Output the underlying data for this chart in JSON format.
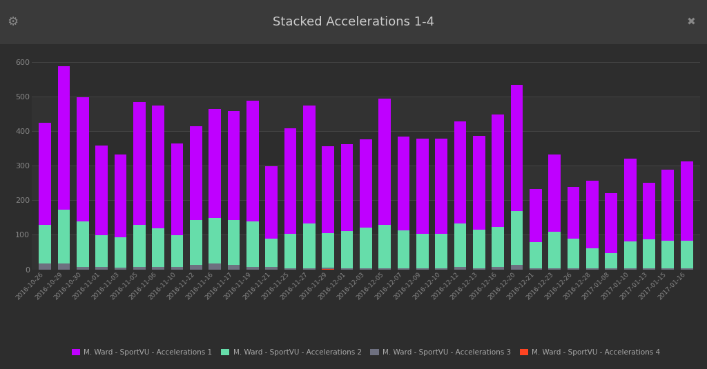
{
  "title": "Stacked Accelerations 1-4",
  "background_color": "#2d2d2d",
  "plot_bg_color": "#2d2d2d",
  "title_bar_color": "#3a3a3a",
  "title_color": "#cccccc",
  "tick_color": "#888888",
  "grid_color": "#444444",
  "alt_band_color": "#383838",
  "dates": [
    "2016-10-26",
    "2016-10-29",
    "2016-10-30",
    "2016-11-01",
    "2016-11-03",
    "2016-11-05",
    "2016-11-06",
    "2016-11-10",
    "2016-11-12",
    "2016-11-16",
    "2016-11-17",
    "2016-11-19",
    "2016-11-21",
    "2016-11-25",
    "2016-11-27",
    "2016-11-29",
    "2016-12-01",
    "2016-12-03",
    "2016-12-05",
    "2016-12-07",
    "2016-12-09",
    "2016-12-10",
    "2016-12-12",
    "2016-12-13",
    "2016-12-16",
    "2016-12-20",
    "2016-12-21",
    "2016-12-23",
    "2016-12-26",
    "2016-12-28",
    "2017-01-08",
    "2017-01-10",
    "2017-01-13",
    "2017-01-15",
    "2017-01-16"
  ],
  "acc1": [
    295,
    415,
    360,
    260,
    240,
    355,
    355,
    265,
    270,
    315,
    315,
    350,
    210,
    305,
    340,
    250,
    250,
    255,
    365,
    270,
    275,
    275,
    295,
    270,
    325,
    365,
    155,
    225,
    150,
    195,
    175,
    240,
    165,
    205,
    230
  ],
  "acc2": [
    110,
    155,
    130,
    90,
    88,
    120,
    110,
    90,
    130,
    130,
    130,
    130,
    80,
    100,
    130,
    100,
    108,
    118,
    125,
    110,
    100,
    100,
    125,
    112,
    115,
    155,
    75,
    105,
    85,
    58,
    43,
    78,
    83,
    80,
    80
  ],
  "acc3": [
    18,
    18,
    8,
    8,
    5,
    8,
    8,
    8,
    13,
    18,
    13,
    8,
    8,
    3,
    3,
    3,
    3,
    3,
    3,
    3,
    3,
    3,
    8,
    3,
    8,
    13,
    3,
    3,
    3,
    3,
    3,
    3,
    3,
    3,
    3
  ],
  "acc4": [
    0,
    0,
    0,
    0,
    0,
    0,
    0,
    0,
    0,
    0,
    0,
    0,
    0,
    0,
    0,
    2,
    0,
    0,
    0,
    0,
    0,
    0,
    0,
    0,
    0,
    0,
    0,
    0,
    0,
    0,
    0,
    0,
    0,
    0,
    0
  ],
  "color_acc1": "#bf00ff",
  "color_acc2": "#66ddaa",
  "color_acc3": "#6e7080",
  "color_acc4": "#ff4422",
  "legend_labels": [
    "M. Ward - SportVU - Accelerations 1",
    "M. Ward - SportVU - Accelerations 2",
    "M. Ward - SportVU - Accelerations 3",
    "M. Ward - SportVU - Accelerations 4"
  ],
  "ylabel_ticks": [
    0,
    100,
    200,
    300,
    400,
    500,
    600
  ],
  "ylim_max": 640,
  "bar_width": 0.65
}
